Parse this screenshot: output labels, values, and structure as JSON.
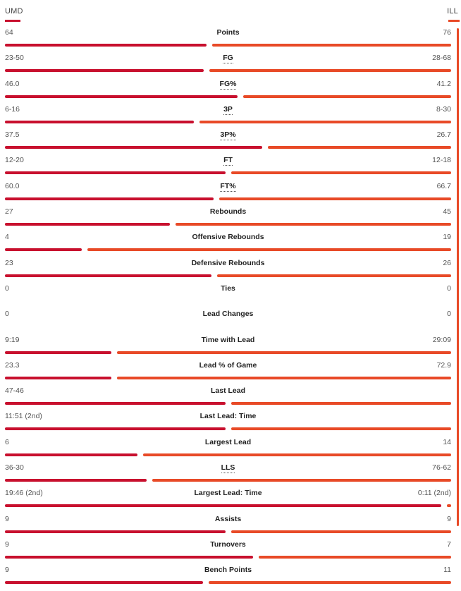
{
  "teams": {
    "away": "UMD",
    "home": "ILL"
  },
  "colors": {
    "away": "#c8102e",
    "home": "#e84a27",
    "scrollbar": "#e84a27"
  },
  "stats": [
    {
      "label": "Points",
      "abbr": false,
      "left": "64",
      "right": "76",
      "left_value": 64,
      "right_value": 76
    },
    {
      "label": "FG",
      "abbr": true,
      "left": "23-50",
      "right": "28-68",
      "left_value": 23,
      "right_value": 28
    },
    {
      "label": "FG%",
      "abbr": true,
      "left": "46.0",
      "right": "41.2",
      "left_value": 46.0,
      "right_value": 41.2
    },
    {
      "label": "3P",
      "abbr": true,
      "left": "6-16",
      "right": "8-30",
      "left_value": 6,
      "right_value": 8
    },
    {
      "label": "3P%",
      "abbr": true,
      "left": "37.5",
      "right": "26.7",
      "left_value": 37.5,
      "right_value": 26.7
    },
    {
      "label": "FT",
      "abbr": true,
      "left": "12-20",
      "right": "12-18",
      "left_value": 12,
      "right_value": 12
    },
    {
      "label": "FT%",
      "abbr": true,
      "left": "60.0",
      "right": "66.7",
      "left_value": 60.0,
      "right_value": 66.7
    },
    {
      "label": "Rebounds",
      "abbr": false,
      "left": "27",
      "right": "45",
      "left_value": 27,
      "right_value": 45
    },
    {
      "label": "Offensive Rebounds",
      "abbr": false,
      "left": "4",
      "right": "19",
      "left_value": 4,
      "right_value": 19
    },
    {
      "label": "Defensive Rebounds",
      "abbr": false,
      "left": "23",
      "right": "26",
      "left_value": 23,
      "right_value": 26
    },
    {
      "label": "Ties",
      "abbr": false,
      "left": "0",
      "right": "0",
      "left_value": 0,
      "right_value": 0
    },
    {
      "label": "Lead Changes",
      "abbr": false,
      "left": "0",
      "right": "0",
      "left_value": 0,
      "right_value": 0
    },
    {
      "label": "Time with Lead",
      "abbr": false,
      "left": "9:19",
      "right": "29:09",
      "left_value": 559,
      "right_value": 1749
    },
    {
      "label": "Lead % of Game",
      "abbr": false,
      "left": "23.3",
      "right": "72.9",
      "left_value": 23.3,
      "right_value": 72.9
    },
    {
      "label": "Last Lead",
      "abbr": false,
      "left": "47-46",
      "right": "",
      "left_value": 1,
      "right_value": 1
    },
    {
      "label": "Last Lead: Time",
      "abbr": false,
      "left": "11:51 (2nd)",
      "right": "",
      "left_value": 1,
      "right_value": 1
    },
    {
      "label": "Largest Lead",
      "abbr": false,
      "left": "6",
      "right": "14",
      "left_value": 6,
      "right_value": 14
    },
    {
      "label": "LLS",
      "abbr": true,
      "left": "36-30",
      "right": "76-62",
      "left_value": 36,
      "right_value": 76
    },
    {
      "label": "Largest Lead: Time",
      "abbr": false,
      "left": "19:46 (2nd)",
      "right": "0:11 (2nd)",
      "left_value": 1186,
      "right_value": 11
    },
    {
      "label": "Assists",
      "abbr": false,
      "left": "9",
      "right": "9",
      "left_value": 9,
      "right_value": 9
    },
    {
      "label": "Turnovers",
      "abbr": false,
      "left": "9",
      "right": "7",
      "left_value": 9,
      "right_value": 7
    },
    {
      "label": "Bench Points",
      "abbr": false,
      "left": "9",
      "right": "11",
      "left_value": 9,
      "right_value": 11
    }
  ]
}
